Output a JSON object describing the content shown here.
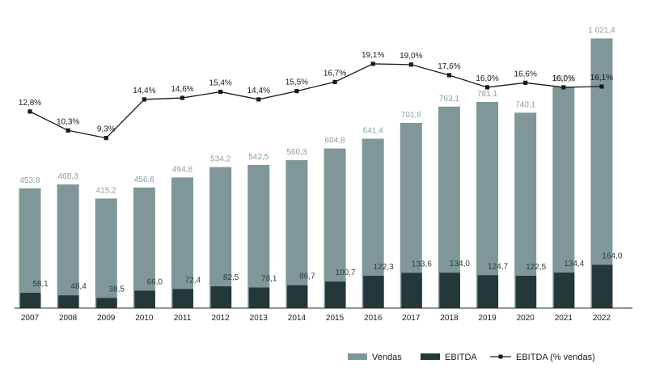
{
  "chart_data": {
    "type": "bar",
    "categories": [
      "2007",
      "2008",
      "2009",
      "2010",
      "2011",
      "2012",
      "2013",
      "2014",
      "2015",
      "2016",
      "2017",
      "2018",
      "2019",
      "2020",
      "2021",
      "2022"
    ],
    "series": [
      {
        "name": "Vendas",
        "kind": "bar",
        "color": "#7f9799",
        "values": [
          453.8,
          468.3,
          415.2,
          456.8,
          494.8,
          534.2,
          542.5,
          560.3,
          604.8,
          641.4,
          701.6,
          763.1,
          781.1,
          740.1,
          837.8,
          1021.4
        ],
        "labels": [
          "453,8",
          "468,3",
          "415,2",
          "456,8",
          "494,8",
          "534,2",
          "542,5",
          "560,3",
          "604,8",
          "641,4",
          "701,6",
          "763,1",
          "781,1",
          "740,1",
          "837,8",
          "1 021,4"
        ]
      },
      {
        "name": "EBITDA",
        "kind": "bar",
        "color": "#24383a",
        "values": [
          58.1,
          48.4,
          38.5,
          66.0,
          72.4,
          82.5,
          78.1,
          86.7,
          100.7,
          122.3,
          133.6,
          134.0,
          124.7,
          122.5,
          134.4,
          164.0
        ],
        "labels": [
          "58,1",
          "48,4",
          "38,5",
          "66,0",
          "72,4",
          "82,5",
          "78,1",
          "86,7",
          "100,7",
          "122,3",
          "133,6",
          "134,0",
          "124,7",
          "122,5",
          "134,4",
          "164,0"
        ]
      },
      {
        "name": "EBITDA (% vendas)",
        "kind": "line",
        "color": "#1a1a1a",
        "values": [
          12.8,
          10.3,
          9.3,
          14.4,
          14.6,
          15.4,
          14.4,
          15.5,
          16.7,
          19.1,
          19.0,
          17.6,
          16.0,
          16.6,
          16.0,
          16.1
        ],
        "labels": [
          "12,8%",
          "10,3%",
          "9,3%",
          "14,4%",
          "14,6%",
          "15,4%",
          "14,4%",
          "15,5%",
          "16,7%",
          "19,1%",
          "19,0%",
          "17,6%",
          "16,0%",
          "16,6%",
          "16,0%",
          "16,1%"
        ]
      }
    ],
    "legend": {
      "position": "bottom-right",
      "items": [
        "Vendas",
        "EBITDA",
        "EBITDA (% vendas)"
      ]
    },
    "bar_ylim": [
      0,
      1050
    ],
    "line_ylim": [
      0,
      30
    ],
    "grid": false,
    "title": "",
    "xlabel": "",
    "ylabel": ""
  }
}
